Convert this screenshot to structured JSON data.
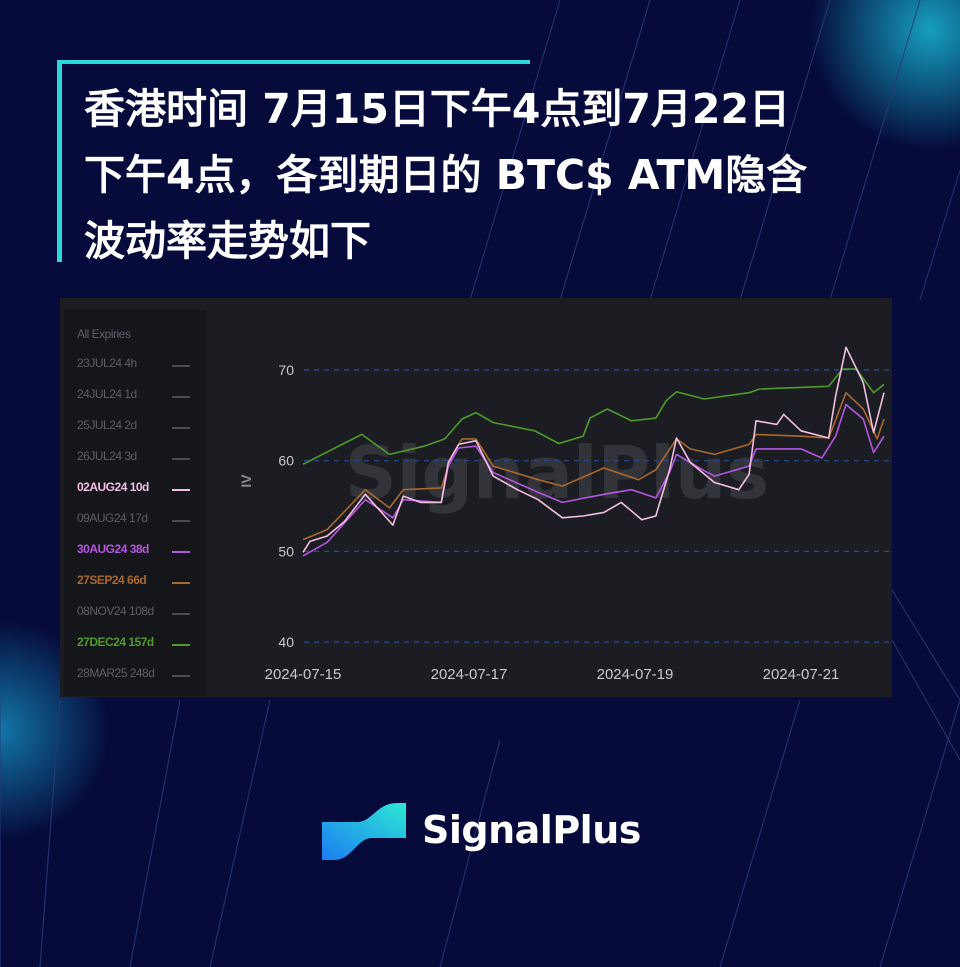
{
  "title": {
    "lines": [
      "香港时间 7月15日下午4点到7月22日",
      "下午4点，各到期日的 BTC$ ATM隐含",
      "波动率走势如下"
    ]
  },
  "brand": {
    "name": "SignalPlus",
    "watermark": "SignalPlus"
  },
  "legend": {
    "header": "All Expiries",
    "items": [
      {
        "label": "23JUL24 4h",
        "color": "#4a4c52",
        "active": false
      },
      {
        "label": "24JUL24 1d",
        "color": "#4a4c52",
        "active": false
      },
      {
        "label": "25JUL24 2d",
        "color": "#4a4c52",
        "active": false
      },
      {
        "label": "26JUL24 3d",
        "color": "#4a4c52",
        "active": false
      },
      {
        "label": "02AUG24 10d",
        "color": "#f2bfe0",
        "active": true
      },
      {
        "label": "09AUG24 17d",
        "color": "#4a4c52",
        "active": false
      },
      {
        "label": "30AUG24 38d",
        "color": "#b457e0",
        "active": true
      },
      {
        "label": "27SEP24 66d",
        "color": "#a8682e",
        "active": true
      },
      {
        "label": "08NOV24 108d",
        "color": "#4a4c52",
        "active": false
      },
      {
        "label": "27DEC24 157d",
        "color": "#4f9a2c",
        "active": true
      },
      {
        "label": "28MAR25 248d",
        "color": "#4a4c52",
        "active": false
      }
    ]
  },
  "chart_data": {
    "type": "line",
    "title": "",
    "xlabel": "",
    "ylabel": "IV",
    "ylim": [
      40,
      72.5
    ],
    "xlim": [
      "2024-07-15 00:00",
      "2024-07-22 00:00"
    ],
    "yticks": [
      "70",
      "60",
      "50",
      "40"
    ],
    "xticks": [
      "2024-07-15",
      "2024-07-17",
      "2024-07-19",
      "2024-07-21"
    ],
    "grid": "horizontal dashed",
    "legend": "left",
    "series": [
      {
        "name": "27DEC24 157d",
        "color": "#4f9a2c",
        "points": [
          [
            "2024-07-15 00:00",
            59.6
          ],
          [
            "2024-07-15 17:00",
            62.9
          ],
          [
            "2024-07-16 01:00",
            60.7
          ],
          [
            "2024-07-16 11:00",
            61.6
          ],
          [
            "2024-07-16 17:00",
            62.4
          ],
          [
            "2024-07-16 22:00",
            64.6
          ],
          [
            "2024-07-17 02:00",
            65.3
          ],
          [
            "2024-07-17 07:00",
            64.2
          ],
          [
            "2024-07-17 19:00",
            63.3
          ],
          [
            "2024-07-18 02:00",
            61.9
          ],
          [
            "2024-07-18 09:00",
            62.7
          ],
          [
            "2024-07-18 11:00",
            64.7
          ],
          [
            "2024-07-18 16:00",
            65.7
          ],
          [
            "2024-07-18 23:00",
            64.4
          ],
          [
            "2024-07-19 06:00",
            64.7
          ],
          [
            "2024-07-19 09:00",
            66.6
          ],
          [
            "2024-07-19 12:00",
            67.6
          ],
          [
            "2024-07-19 20:00",
            66.8
          ],
          [
            "2024-07-20 09:00",
            67.5
          ],
          [
            "2024-07-20 12:00",
            67.9
          ],
          [
            "2024-07-21 08:00",
            68.2
          ],
          [
            "2024-07-21 12:00",
            70.1
          ],
          [
            "2024-07-21 16:00",
            70.1
          ],
          [
            "2024-07-21 21:00",
            67.5
          ],
          [
            "2024-07-22 00:00",
            68.4
          ]
        ]
      },
      {
        "name": "27SEP24 66d",
        "color": "#a8682e",
        "points": [
          [
            "2024-07-15 00:00",
            51.3
          ],
          [
            "2024-07-15 07:00",
            52.4
          ],
          [
            "2024-07-15 18:00",
            56.8
          ],
          [
            "2024-07-16 01:00",
            54.8
          ],
          [
            "2024-07-16 05:00",
            56.8
          ],
          [
            "2024-07-16 16:00",
            57.0
          ],
          [
            "2024-07-16 19:00",
            60.5
          ],
          [
            "2024-07-16 22:00",
            62.4
          ],
          [
            "2024-07-17 02:00",
            62.4
          ],
          [
            "2024-07-17 07:00",
            59.4
          ],
          [
            "2024-07-17 20:00",
            57.9
          ],
          [
            "2024-07-18 03:00",
            57.2
          ],
          [
            "2024-07-18 15:00",
            59.2
          ],
          [
            "2024-07-19 01:00",
            57.9
          ],
          [
            "2024-07-19 06:00",
            59.0
          ],
          [
            "2024-07-19 12:00",
            62.4
          ],
          [
            "2024-07-19 16:00",
            61.3
          ],
          [
            "2024-07-19 23:00",
            60.7
          ],
          [
            "2024-07-20 09:00",
            61.8
          ],
          [
            "2024-07-20 11:00",
            62.9
          ],
          [
            "2024-07-21 00:00",
            62.7
          ],
          [
            "2024-07-21 08:00",
            62.5
          ],
          [
            "2024-07-21 13:00",
            67.5
          ],
          [
            "2024-07-21 18:00",
            65.7
          ],
          [
            "2024-07-21 22:00",
            62.4
          ],
          [
            "2024-07-22 00:00",
            64.6
          ]
        ]
      },
      {
        "name": "30AUG24 38d",
        "color": "#b457e0",
        "points": [
          [
            "2024-07-15 00:00",
            49.5
          ],
          [
            "2024-07-15 07:00",
            51.0
          ],
          [
            "2024-07-15 18:00",
            55.7
          ],
          [
            "2024-07-16 02:00",
            53.7
          ],
          [
            "2024-07-16 05:00",
            55.7
          ],
          [
            "2024-07-16 16:00",
            55.4
          ],
          [
            "2024-07-16 18:00",
            59.4
          ],
          [
            "2024-07-16 21:00",
            61.4
          ],
          [
            "2024-07-17 02:00",
            61.6
          ],
          [
            "2024-07-17 07:00",
            58.7
          ],
          [
            "2024-07-17 20:00",
            56.5
          ],
          [
            "2024-07-18 03:00",
            55.4
          ],
          [
            "2024-07-18 15:00",
            56.3
          ],
          [
            "2024-07-18 23:00",
            56.8
          ],
          [
            "2024-07-19 06:00",
            55.9
          ],
          [
            "2024-07-19 10:00",
            58.7
          ],
          [
            "2024-07-19 12:00",
            60.7
          ],
          [
            "2024-07-19 20:00",
            58.9
          ],
          [
            "2024-07-19 23:00",
            58.3
          ],
          [
            "2024-07-20 09:00",
            59.4
          ],
          [
            "2024-07-20 11:00",
            61.3
          ],
          [
            "2024-07-21 00:00",
            61.3
          ],
          [
            "2024-07-21 06:00",
            60.3
          ],
          [
            "2024-07-21 10:00",
            62.7
          ],
          [
            "2024-07-21 13:00",
            66.2
          ],
          [
            "2024-07-21 18:00",
            64.6
          ],
          [
            "2024-07-21 21:00",
            60.9
          ],
          [
            "2024-07-22 00:00",
            62.7
          ]
        ]
      },
      {
        "name": "02AUG24 10d",
        "color": "#f2bfe0",
        "points": [
          [
            "2024-07-15 00:00",
            49.9
          ],
          [
            "2024-07-15 02:00",
            51.1
          ],
          [
            "2024-07-15 07:00",
            51.7
          ],
          [
            "2024-07-15 12:00",
            53.3
          ],
          [
            "2024-07-15 18:00",
            56.3
          ],
          [
            "2024-07-15 22:00",
            54.6
          ],
          [
            "2024-07-16 02:00",
            52.9
          ],
          [
            "2024-07-16 05:00",
            56.1
          ],
          [
            "2024-07-16 10:00",
            55.4
          ],
          [
            "2024-07-16 16:00",
            55.4
          ],
          [
            "2024-07-16 18:00",
            59.8
          ],
          [
            "2024-07-16 21:00",
            61.8
          ],
          [
            "2024-07-17 02:00",
            62.2
          ],
          [
            "2024-07-17 07:00",
            58.3
          ],
          [
            "2024-07-17 14:00",
            56.8
          ],
          [
            "2024-07-17 20:00",
            55.7
          ],
          [
            "2024-07-18 03:00",
            53.7
          ],
          [
            "2024-07-18 09:00",
            53.9
          ],
          [
            "2024-07-18 15:00",
            54.3
          ],
          [
            "2024-07-18 20:00",
            55.4
          ],
          [
            "2024-07-19 02:00",
            53.5
          ],
          [
            "2024-07-19 06:00",
            53.9
          ],
          [
            "2024-07-19 10:00",
            59.0
          ],
          [
            "2024-07-19 12:00",
            62.5
          ],
          [
            "2024-07-19 16:00",
            59.8
          ],
          [
            "2024-07-19 23:00",
            57.6
          ],
          [
            "2024-07-20 06:00",
            56.8
          ],
          [
            "2024-07-20 09:00",
            58.5
          ],
          [
            "2024-07-20 11:00",
            64.4
          ],
          [
            "2024-07-20 17:00",
            64.0
          ],
          [
            "2024-07-20 19:00",
            65.1
          ],
          [
            "2024-07-21 00:00",
            63.3
          ],
          [
            "2024-07-21 08:00",
            62.5
          ],
          [
            "2024-07-21 10:00",
            67.1
          ],
          [
            "2024-07-21 13:00",
            72.5
          ],
          [
            "2024-07-21 18:00",
            68.6
          ],
          [
            "2024-07-21 21:00",
            63.1
          ],
          [
            "2024-07-22 00:00",
            67.5
          ]
        ]
      }
    ]
  }
}
